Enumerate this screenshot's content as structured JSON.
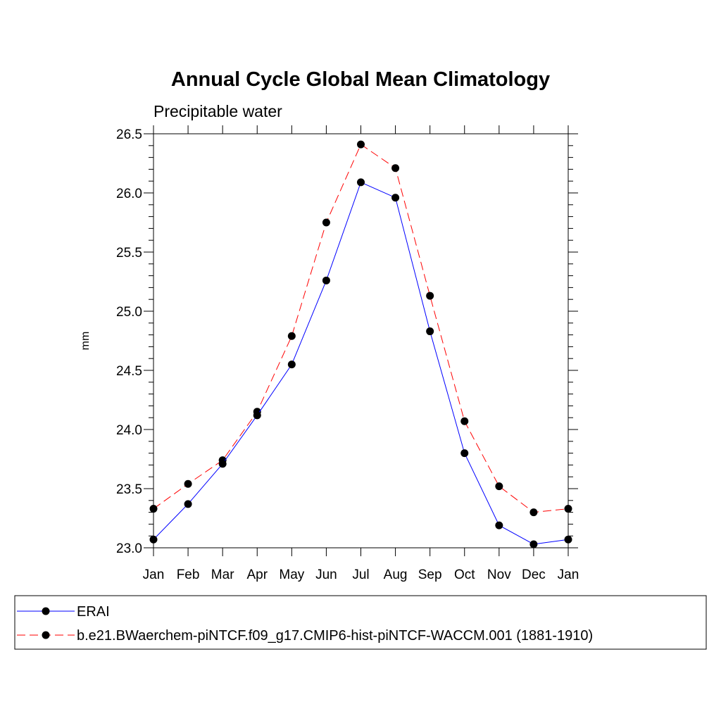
{
  "chart_data": {
    "type": "line",
    "title": "Annual Cycle Global Mean Climatology",
    "subtitle": "Precipitable water",
    "xlabel": "",
    "ylabel": "mm",
    "categories": [
      "Jan",
      "Feb",
      "Mar",
      "Apr",
      "May",
      "Jun",
      "Jul",
      "Aug",
      "Sep",
      "Oct",
      "Nov",
      "Dec",
      "Jan"
    ],
    "y_ticks": [
      "23.0",
      "23.5",
      "24.0",
      "24.5",
      "25.0",
      "25.5",
      "26.0",
      "26.5"
    ],
    "ylim": [
      23.0,
      26.5
    ],
    "grid": false,
    "legend_position": "bottom",
    "series": [
      {
        "name": "ERAI",
        "color": "#0000ff",
        "dash": "solid",
        "marker": "filled-circle",
        "values": [
          23.07,
          23.37,
          23.71,
          24.12,
          24.55,
          25.26,
          26.09,
          25.96,
          24.83,
          23.8,
          23.19,
          23.03,
          23.07
        ]
      },
      {
        "name": "b.e21.BWaerchem-piNTCF.f09_g17.CMIP6-hist-piNTCF-WACCM.001 (1881-1910)",
        "color": "#ff0000",
        "dash": "dashed",
        "marker": "filled-circle",
        "values": [
          23.33,
          23.54,
          23.74,
          24.15,
          24.79,
          25.75,
          26.41,
          26.21,
          25.13,
          24.07,
          23.52,
          23.3,
          23.33
        ]
      }
    ]
  }
}
